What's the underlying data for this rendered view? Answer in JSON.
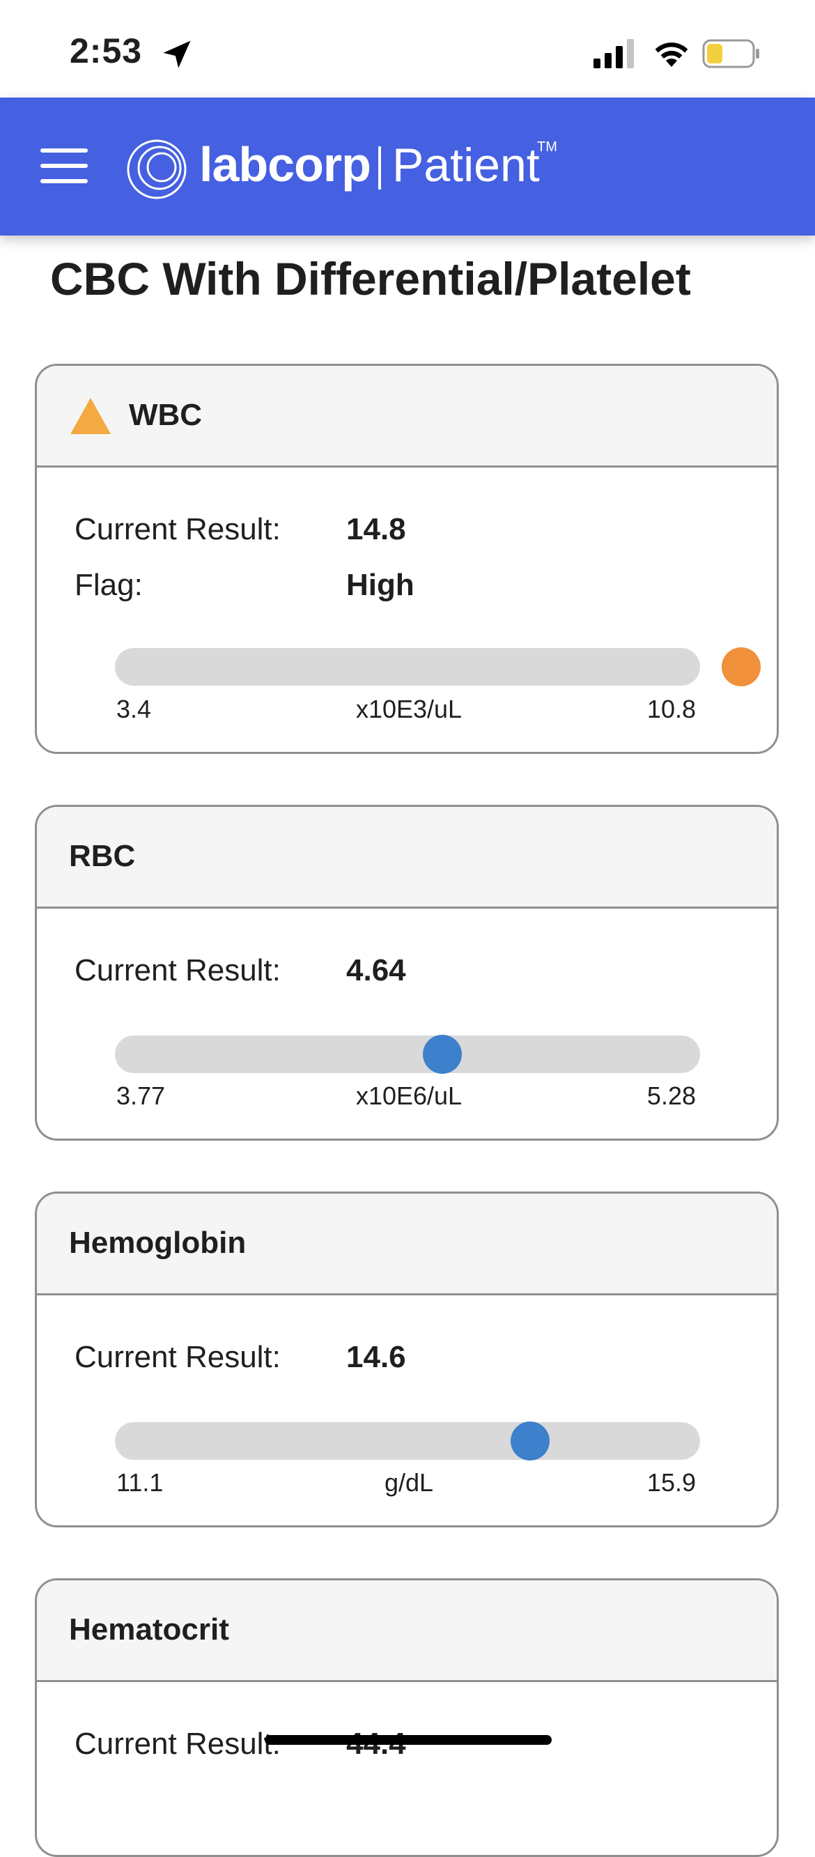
{
  "status_bar": {
    "time": "2:53"
  },
  "header": {
    "brand": "labcorp",
    "separator": "|",
    "section": "Patient",
    "trademark": "TM",
    "color": "#4560e0"
  },
  "page": {
    "title": "CBC With Differential/Platelet"
  },
  "results": [
    {
      "name": "WBC",
      "flagged": true,
      "current_label": "Current Result:",
      "current_value": "14.8",
      "flag_label": "Flag:",
      "flag_value": "High",
      "range_min": "3.4",
      "range_max": "10.8",
      "unit": "x10E3/uL",
      "marker_position": 1.07,
      "marker_color": "#f0903a"
    },
    {
      "name": "RBC",
      "flagged": false,
      "current_label": "Current Result:",
      "current_value": "4.64",
      "range_min": "3.77",
      "range_max": "5.28",
      "unit": "x10E6/uL",
      "marker_position": 0.56,
      "marker_color": "#3d80cc"
    },
    {
      "name": "Hemoglobin",
      "flagged": false,
      "current_label": "Current Result:",
      "current_value": "14.6",
      "range_min": "11.1",
      "range_max": "15.9",
      "unit": "g/dL",
      "marker_position": 0.71,
      "marker_color": "#3d80cc"
    },
    {
      "name": "Hematocrit",
      "flagged": false,
      "current_label": "Current Result:",
      "current_value": "44.4"
    }
  ],
  "colors": {
    "warning": "#f5a942",
    "track": "#d9d9d9",
    "border": "#8f8f8f"
  }
}
